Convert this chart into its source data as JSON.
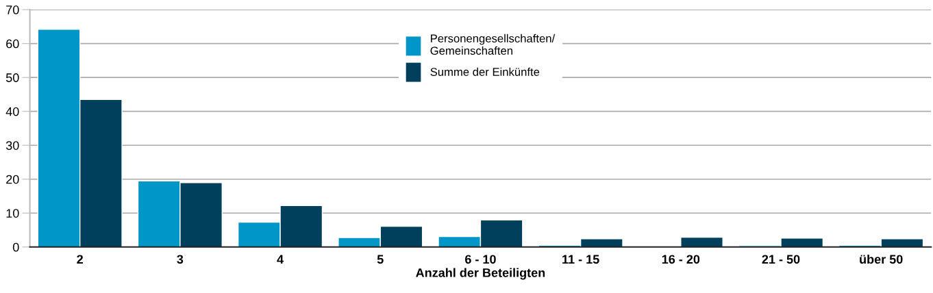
{
  "chart_data": {
    "type": "bar",
    "xlabel": "Anzahl der Beteiligten",
    "categories": [
      "2",
      "3",
      "4",
      "5",
      "6 - 10",
      "11 - 15",
      "16 - 20",
      "21 - 50",
      "über 50"
    ],
    "series": [
      {
        "name": "Personengesellschaften/\nGemeinschaften",
        "color": "#0096c8",
        "values": [
          64.2,
          19.5,
          7.3,
          2.8,
          3.1,
          0.5,
          0.2,
          0.4,
          0.5
        ]
      },
      {
        "name": "Summe der Einkünfte",
        "color": "#00405c",
        "values": [
          43.5,
          19.0,
          12.2,
          6.1,
          8.0,
          2.4,
          2.9,
          2.6,
          2.4
        ]
      }
    ],
    "ylim": [
      0,
      70
    ],
    "yticks": [
      0,
      10,
      20,
      30,
      40,
      50,
      60,
      70
    ],
    "grid": "y",
    "legend": "top"
  }
}
